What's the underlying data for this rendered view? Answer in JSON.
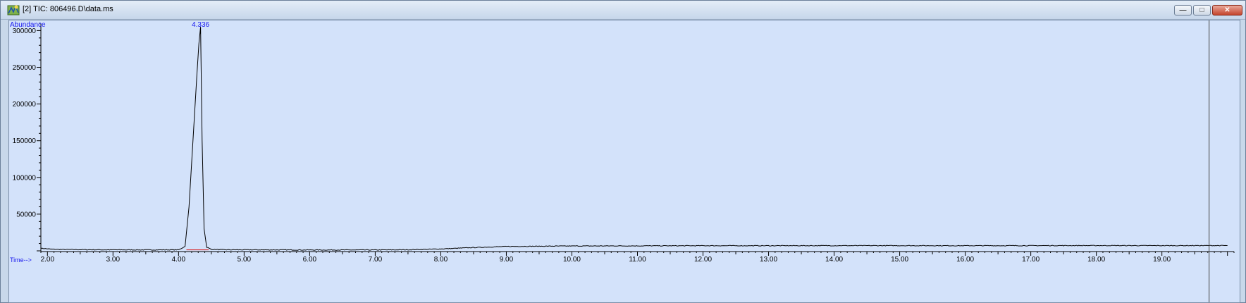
{
  "window": {
    "title": "[2] TIC: 806496.D\\data.ms",
    "icon": "chromatogram-icon",
    "controls": {
      "minimize": "minimize-icon",
      "maximize": "maximize-icon",
      "close": "close-icon"
    }
  },
  "colors": {
    "plot_bg": "#d3e2fa",
    "label_blue": "#1a1aee",
    "trace": "#000000",
    "baseline_marker": "#d62222"
  },
  "chart_data": {
    "type": "line",
    "title": "",
    "ylabel": "Abundance",
    "xlabel": "Time-->",
    "xlim": [
      1.9,
      20.1
    ],
    "ylim": [
      0,
      310000
    ],
    "x_ticks": [
      "2.00",
      "3.00",
      "4.00",
      "5.00",
      "6.00",
      "7.00",
      "8.00",
      "9.00",
      "10.00",
      "11.00",
      "12.00",
      "13.00",
      "14.00",
      "15.00",
      "16.00",
      "17.00",
      "18.00",
      "19.00"
    ],
    "y_ticks": [
      "50000",
      "100000",
      "150000",
      "200000",
      "250000",
      "300000"
    ],
    "peak_label": "4.336",
    "peak": {
      "rt": 4.336,
      "abundance": 305000
    },
    "cursor_time": 19.72,
    "series": [
      {
        "name": "TIC",
        "x": [
          1.9,
          2.05,
          2.2,
          2.5,
          3.0,
          3.5,
          4.0,
          4.1,
          4.16,
          4.22,
          4.28,
          4.31,
          4.336,
          4.36,
          4.39,
          4.43,
          4.5,
          4.7,
          5.0,
          6.0,
          7.0,
          7.5,
          8.0,
          8.5,
          9.0,
          10.0,
          11.0,
          12.0,
          13.0,
          14.0,
          15.0,
          16.0,
          17.0,
          18.0,
          19.0,
          20.0
        ],
        "y": [
          3500,
          2400,
          1900,
          1600,
          1400,
          1300,
          1400,
          6000,
          60000,
          150000,
          240000,
          282000,
          305000,
          150000,
          30000,
          5000,
          2000,
          1500,
          1400,
          1200,
          1200,
          1500,
          2600,
          4500,
          6000,
          6600,
          6800,
          7000,
          7000,
          7100,
          7100,
          7000,
          7100,
          7200,
          7100,
          7200
        ]
      }
    ]
  }
}
